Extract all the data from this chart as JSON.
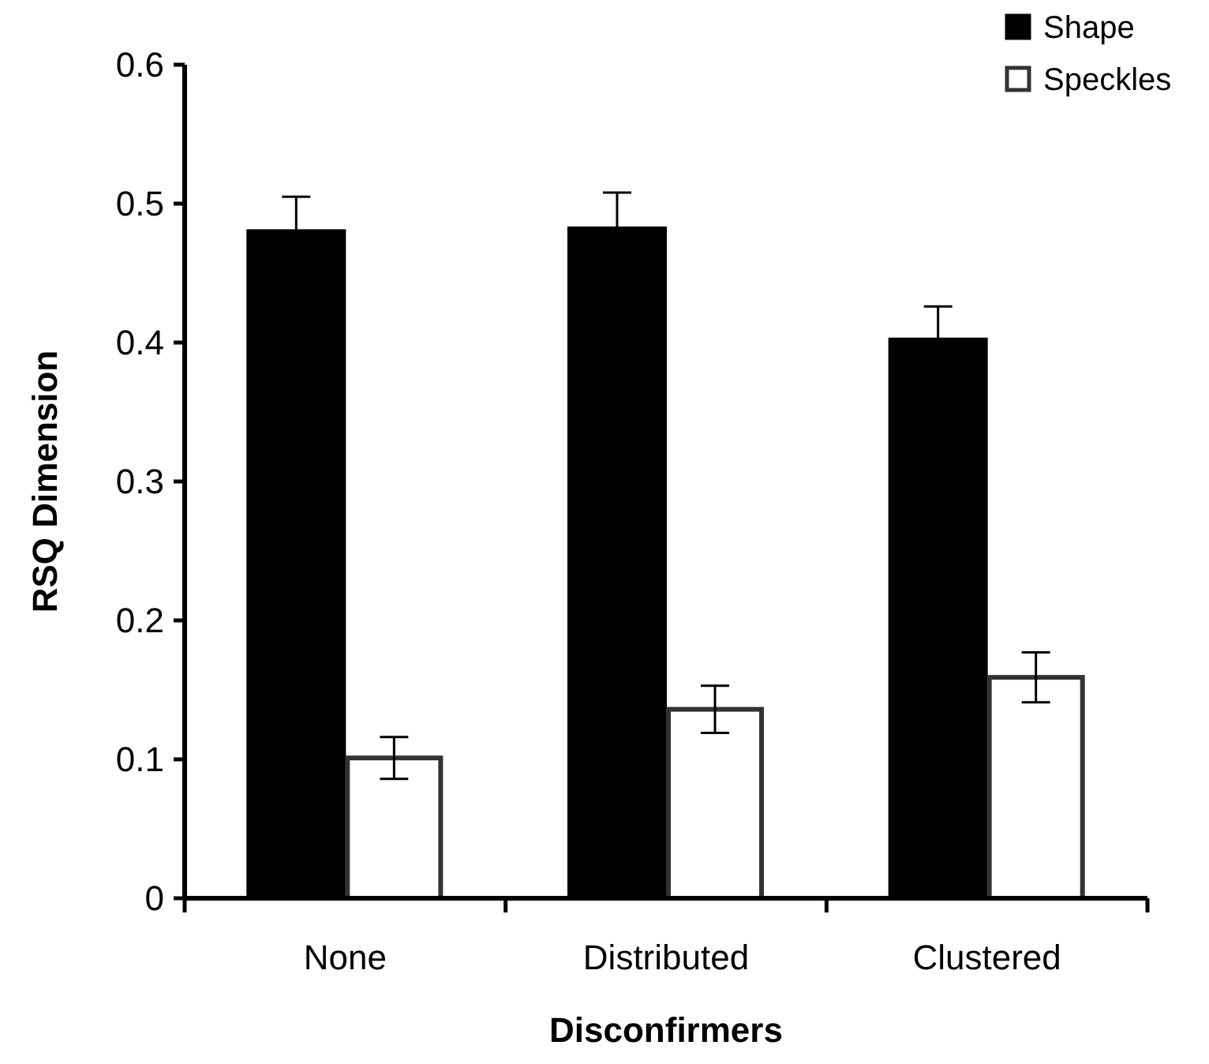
{
  "chart_data": {
    "type": "bar",
    "xlabel": "Disconfirmers",
    "ylabel": "RSQ Dimension",
    "categories": [
      "None",
      "Distributed",
      "Clustered"
    ],
    "series": [
      {
        "name": "Shape",
        "color": "#000000",
        "values": [
          0.481,
          0.483,
          0.403
        ],
        "errors": [
          0.024,
          0.025,
          0.023
        ]
      },
      {
        "name": "Speckles",
        "color": "#ffffff",
        "values": [
          0.101,
          0.136,
          0.159
        ],
        "errors": [
          0.015,
          0.017,
          0.018
        ]
      }
    ],
    "ylim": [
      0,
      0.6
    ],
    "yticks": [
      0,
      0.1,
      0.2,
      0.3,
      0.4,
      0.5,
      0.6
    ],
    "grid": false,
    "legend": "top right"
  }
}
